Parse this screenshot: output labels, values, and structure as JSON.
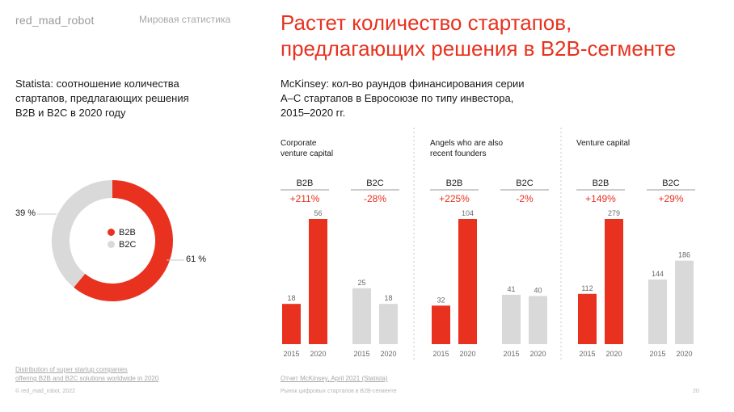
{
  "header": {
    "logo": "red_mad_robot",
    "section": "Мировая статистика",
    "title_line1": "Растет количество стартапов,",
    "title_line2": "предлагающих решения в B2B-сегменте"
  },
  "left_panel": {
    "subtitle_line1": "Statista: соотношение количества",
    "subtitle_line2": "стартапов, предлагающих решения",
    "subtitle_line3": "B2B и B2C в 2020 году",
    "source_line1": "Distribution of super startup companies",
    "source_line2": "offering B2B and B2C solutions worldwide in 2020"
  },
  "right_panel": {
    "subtitle_line1": "McKinsey: кол-во раундов финансирования серии",
    "subtitle_line2": "А–С стартапов в Евросоюзе по типу инвестора,",
    "subtitle_line3": "2015–2020 гг.",
    "source": "Отчет McKinsey, April 2021 (Statista)"
  },
  "footer": {
    "copyright": "© red_mad_robot, 2022",
    "doc_title": "Рынок цифровых стартапов в B2B-сегменте",
    "page_number": "20"
  },
  "colors": {
    "accent": "#e8321f",
    "grey": "#d9d9d9",
    "text": "#1a1a1a",
    "muted": "#a8a8a8"
  },
  "chart_data": [
    {
      "type": "pie",
      "variant": "donut",
      "categories": [
        "B2B",
        "B2C"
      ],
      "values": [
        61,
        39
      ],
      "value_labels": [
        "61 %",
        "39 %"
      ],
      "colors": [
        "#e8321f",
        "#d9d9d9"
      ],
      "legend": "center"
    },
    {
      "type": "bar",
      "x": [
        "2015",
        "2020"
      ],
      "panels": [
        {
          "title_line1": "Corporate",
          "title_line2": "venture capital",
          "groups": [
            {
              "name": "B2B",
              "change": "+211%",
              "values": [
                18,
                56
              ]
            },
            {
              "name": "B2C",
              "change": "-28%",
              "values": [
                25,
                18
              ]
            }
          ]
        },
        {
          "title_line1": "Angels who are also",
          "title_line2": "recent founders",
          "groups": [
            {
              "name": "B2B",
              "change": "+225%",
              "values": [
                32,
                104
              ]
            },
            {
              "name": "B2C",
              "change": "-2%",
              "values": [
                41,
                40
              ]
            }
          ]
        },
        {
          "title_line1": "Venture capital",
          "title_line2": "",
          "groups": [
            {
              "name": "B2B",
              "change": "+149%",
              "values": [
                112,
                279
              ]
            },
            {
              "name": "B2C",
              "change": "+29%",
              "values": [
                144,
                186
              ]
            }
          ]
        }
      ]
    }
  ]
}
